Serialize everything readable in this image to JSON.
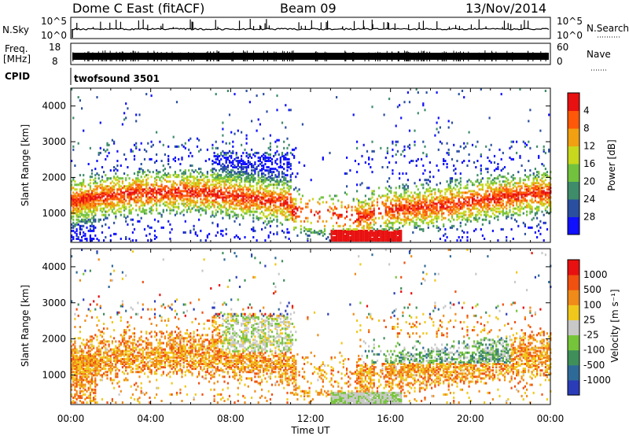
{
  "header": {
    "station": "Dome C East (fitACF)",
    "beam": "Beam 09",
    "date": "13/Nov/2014"
  },
  "nsky_panel": {
    "left_label": "N.Sky",
    "right_label": "N.Search",
    "left_ticks": [
      "10^5",
      "10^0"
    ],
    "right_ticks": [
      "10^5",
      "10^0"
    ]
  },
  "freq_panel": {
    "left_label_1": "Freq.",
    "left_label_2": "[MHz]",
    "right_label": "Nave",
    "left_ticks": [
      "18",
      "8"
    ],
    "right_ticks": [
      "60",
      "0"
    ]
  },
  "cpid_panel": {
    "label": "CPID",
    "program": "twofsound 3501"
  },
  "chart_data": [
    {
      "type": "heatmap",
      "name": "power",
      "ylabel": "Slant Range [km]",
      "y_ticks": [
        "1000",
        "2000",
        "3000",
        "4000"
      ],
      "ylim": [
        180,
        4500
      ],
      "xlim": [
        "00:00",
        "24:00"
      ],
      "colorbar_label": "Power [dB]",
      "colorbar_ticks": [
        "4",
        "8",
        "12",
        "16",
        "20",
        "24",
        "28"
      ],
      "colors": [
        "#1010ff",
        "#2a4fa0",
        "#3e8c6a",
        "#72c23e",
        "#c8d81c",
        "#f0a010",
        "#ff5808",
        "#e81010"
      ]
    },
    {
      "type": "heatmap",
      "name": "velocity",
      "ylabel": "Slant Range [km]",
      "y_ticks": [
        "1000",
        "2000",
        "3000",
        "4000"
      ],
      "ylim": [
        180,
        4500
      ],
      "xlim": [
        "00:00",
        "24:00"
      ],
      "colorbar_label": "Velocity [m s⁻¹]",
      "colorbar_ticks": [
        "1000",
        "500",
        "100",
        "25",
        "-25",
        "-100",
        "-500",
        "-1000"
      ],
      "colors": [
        "#2a3cb8",
        "#2e6a98",
        "#3f8f5a",
        "#76c43a",
        "#c8c8c8",
        "#f0c81c",
        "#f08a18",
        "#f05010",
        "#e81010"
      ]
    }
  ],
  "x_axis": {
    "ticks": [
      "00:00",
      "04:00",
      "08:00",
      "12:00",
      "16:00",
      "20:00",
      "00:00"
    ],
    "label": "Time UT"
  }
}
